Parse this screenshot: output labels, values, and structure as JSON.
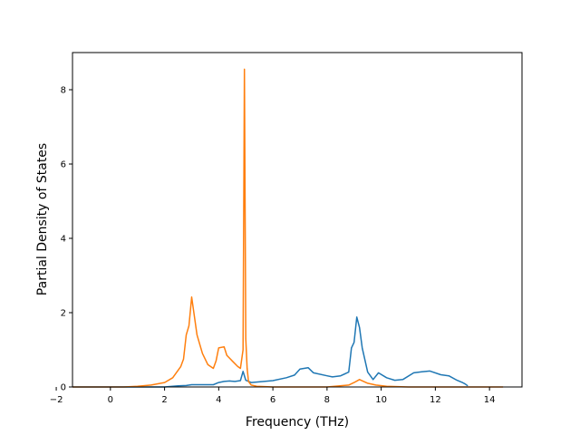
{
  "chart_data": {
    "type": "line",
    "title": "",
    "xlabel": "Frequency (THz)",
    "ylabel": "Partial Density of States",
    "xlim": [
      -1.4,
      15.2
    ],
    "ylim": [
      0,
      9
    ],
    "xticks": [
      -2,
      0,
      2,
      4,
      6,
      8,
      10,
      12,
      14
    ],
    "yticks": [
      0,
      2,
      4,
      6,
      8
    ],
    "grid": false,
    "legend": "none",
    "colors": [
      "#1f77b4",
      "#ff7f0e"
    ],
    "series": [
      {
        "x": [
          -1.4,
          2.0,
          2.5,
          2.8,
          3.0,
          3.5,
          3.8,
          4.0,
          4.2,
          4.4,
          4.6,
          4.8,
          4.9,
          5.0,
          5.2,
          6.0,
          6.5,
          6.8,
          7.0,
          7.3,
          7.5,
          8.0,
          8.2,
          8.5,
          8.8,
          8.9,
          9.0,
          9.1,
          9.2,
          9.3,
          9.5,
          9.7,
          9.9,
          10.2,
          10.5,
          10.8,
          11.2,
          11.5,
          11.8,
          12.2,
          12.5,
          12.8,
          13.0,
          13.1,
          13.2
        ],
        "values": [
          0,
          0,
          0.03,
          0.04,
          0.06,
          0.06,
          0.06,
          0.12,
          0.15,
          0.16,
          0.15,
          0.17,
          0.42,
          0.18,
          0.12,
          0.17,
          0.25,
          0.32,
          0.48,
          0.52,
          0.38,
          0.3,
          0.27,
          0.3,
          0.4,
          1.05,
          1.2,
          1.88,
          1.6,
          1.05,
          0.4,
          0.2,
          0.38,
          0.25,
          0.18,
          0.2,
          0.38,
          0.41,
          0.43,
          0.33,
          0.3,
          0.18,
          0.12,
          0.08,
          0.03
        ]
      },
      {
        "x": [
          -1.4,
          0.5,
          1.0,
          1.5,
          2.0,
          2.3,
          2.6,
          2.7,
          2.8,
          2.9,
          3.0,
          3.2,
          3.4,
          3.6,
          3.8,
          3.9,
          4.0,
          4.2,
          4.3,
          4.5,
          4.7,
          4.8,
          4.9,
          4.95,
          5.0,
          5.05,
          5.1,
          5.2,
          5.4,
          6.0,
          8.0,
          8.8,
          9.0,
          9.2,
          9.5,
          9.8,
          10.2,
          11.0,
          14.5
        ],
        "values": [
          0,
          0,
          0.02,
          0.05,
          0.12,
          0.25,
          0.55,
          0.75,
          1.4,
          1.65,
          2.42,
          1.4,
          0.9,
          0.6,
          0.5,
          0.7,
          1.05,
          1.08,
          0.85,
          0.7,
          0.55,
          0.5,
          1.0,
          8.55,
          1.3,
          0.5,
          0.15,
          0.05,
          0.02,
          0.0,
          0.0,
          0.05,
          0.12,
          0.2,
          0.1,
          0.05,
          0.02,
          0.0,
          0.0
        ]
      }
    ]
  }
}
